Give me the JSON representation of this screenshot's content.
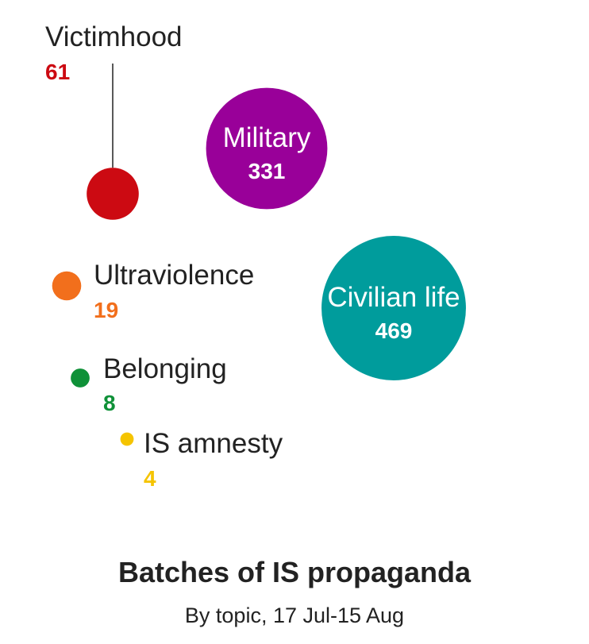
{
  "chart_data": {
    "type": "bubble",
    "title": "Batches of IS propaganda",
    "subtitle": "By topic, 17 Jul-15 Aug",
    "series": [
      {
        "name": "Victimhood",
        "value": 61,
        "color": "#cc0a12"
      },
      {
        "name": "Military",
        "value": 331,
        "color": "#990099"
      },
      {
        "name": "Ultraviolence",
        "value": 19,
        "color": "#f26f1c"
      },
      {
        "name": "Civilian life",
        "value": 469,
        "color": "#009c9c"
      },
      {
        "name": "Belonging",
        "value": 8,
        "color": "#0f9138"
      },
      {
        "name": "IS amnesty",
        "value": 4,
        "color": "#f5c400"
      }
    ]
  }
}
